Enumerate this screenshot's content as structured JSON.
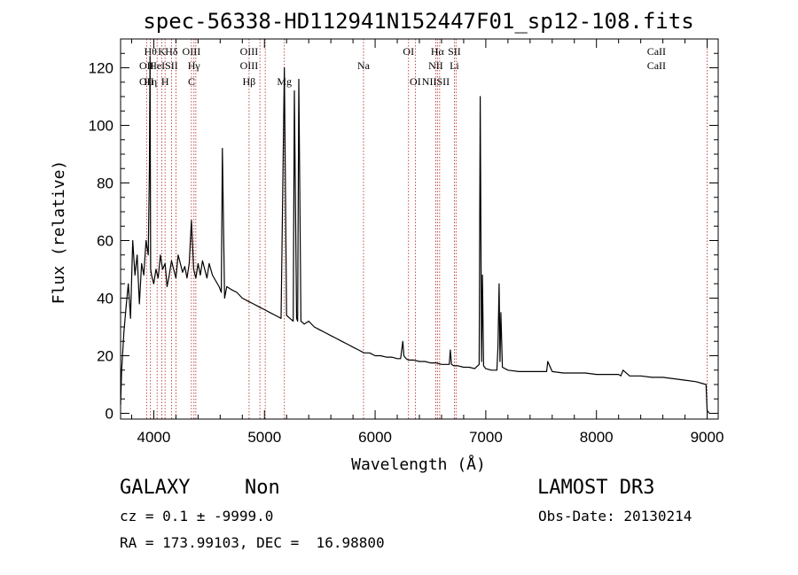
{
  "chart_data": {
    "type": "line",
    "title": "spec-56338-HD112941N152447F01_sp12-108.fits",
    "xlabel": "Wavelength (Å)",
    "ylabel": "Flux (relative)",
    "xlim": [
      3700,
      9100
    ],
    "ylim": [
      -2,
      130
    ],
    "xticks": [
      4000,
      5000,
      6000,
      7000,
      8000,
      9000
    ],
    "yticks": [
      0,
      20,
      40,
      60,
      80,
      100,
      120
    ],
    "grid": false,
    "line_color": "#000000",
    "marker_color": "#b22222",
    "series": [
      {
        "x": [
          3700,
          3710,
          3730,
          3750,
          3770,
          3790,
          3810,
          3830,
          3850,
          3870,
          3890,
          3910,
          3930,
          3950,
          3960,
          3966,
          3972,
          3980,
          4000,
          4020,
          4040,
          4060,
          4080,
          4102,
          4120,
          4140,
          4160,
          4180,
          4200,
          4220,
          4240,
          4260,
          4280,
          4300,
          4320,
          4340,
          4360,
          4380,
          4400,
          4420,
          4440,
          4460,
          4480,
          4500,
          4530,
          4560,
          4590,
          4610,
          4620,
          4640,
          4660,
          4700,
          4750,
          4800,
          4850,
          4900,
          4950,
          5000,
          5050,
          5100,
          5150,
          5180,
          5200,
          5230,
          5260,
          5270,
          5290,
          5300,
          5310,
          5330,
          5360,
          5400,
          5450,
          5500,
          5550,
          5600,
          5650,
          5700,
          5750,
          5800,
          5850,
          5900,
          5950,
          6000,
          6050,
          6100,
          6150,
          6200,
          6230,
          6250,
          6260,
          6280,
          6300,
          6350,
          6400,
          6450,
          6500,
          6550,
          6600,
          6650,
          6670,
          6680,
          6690,
          6710,
          6750,
          6800,
          6850,
          6900,
          6940,
          6950,
          6962,
          6970,
          6980,
          6990,
          7000,
          7050,
          7100,
          7110,
          7120,
          7128,
          7136,
          7150,
          7200,
          7300,
          7400,
          7500,
          7540,
          7550,
          7560,
          7600,
          7700,
          7800,
          7900,
          8000,
          8100,
          8200,
          8220,
          8240,
          8300,
          8400,
          8500,
          8600,
          8700,
          8800,
          8900,
          8990,
          9000,
          9020
        ],
        "y": [
          3,
          15,
          28,
          37,
          45,
          33,
          60,
          48,
          55,
          38,
          52,
          48,
          60,
          55,
          85,
          124,
          50,
          48,
          45,
          50,
          47,
          55,
          50,
          52,
          44,
          48,
          53,
          50,
          47,
          55,
          52,
          49,
          51,
          47,
          52,
          67,
          50,
          47,
          52,
          48,
          53,
          50,
          47,
          52,
          48,
          46,
          44,
          42,
          92,
          40,
          44,
          43,
          42,
          40,
          39,
          38,
          37,
          36,
          35,
          34,
          33,
          120,
          34,
          33,
          32,
          112,
          33,
          32,
          116,
          32,
          31,
          32,
          30,
          29,
          28,
          27,
          26,
          25,
          24,
          23,
          22,
          21,
          21,
          20,
          20,
          19.5,
          19.5,
          19,
          19,
          25,
          20,
          19,
          18.5,
          18.5,
          18,
          18,
          17.5,
          17.5,
          17,
          17,
          17,
          22,
          17,
          16.5,
          16.5,
          16,
          16,
          15.5,
          17,
          110,
          18,
          48,
          16.5,
          16,
          15.5,
          15,
          15,
          23,
          45,
          18,
          35,
          16,
          15,
          14.5,
          14.5,
          14.5,
          14.5,
          14.5,
          18,
          14.5,
          14,
          14,
          14,
          13.5,
          13.5,
          13.5,
          13,
          15,
          13,
          13,
          12.5,
          12.5,
          12,
          11.5,
          11,
          10,
          1,
          0
        ]
      }
    ],
    "emission_lines": [
      {
        "x": 3935,
        "label": "OII",
        "row": 1
      },
      {
        "x": 3935,
        "label": "OII",
        "row": 3
      },
      {
        "x": 3970,
        "label": "Hθ",
        "row": 0
      },
      {
        "x": 3970,
        "label": "Hη",
        "row": 2
      },
      {
        "x": 4030,
        "label": "HeI",
        "row": 1
      },
      {
        "x": 4072,
        "label": "K",
        "row": 0
      },
      {
        "x": 4102,
        "label": "H",
        "row": 2
      },
      {
        "x": 4160,
        "label": "Hδ",
        "row": 0
      },
      {
        "x": 4160,
        "label": "SII",
        "row": 1
      },
      {
        "x": 4340,
        "label": "OIII",
        "row": 0
      },
      {
        "x": 4363,
        "label": "Hγ",
        "row": 1
      },
      {
        "x": 4341,
        "label": "C",
        "row": 2
      },
      {
        "x": 4861,
        "label": "OIII",
        "row": 0
      },
      {
        "x": 4861,
        "label": "OIII",
        "row": 1
      },
      {
        "x": 4861,
        "label": "Hβ",
        "row": 2
      },
      {
        "x": 5180,
        "label": "Mg",
        "row": 2
      },
      {
        "x": 5895,
        "label": "Na",
        "row": 1
      },
      {
        "x": 6302,
        "label": "OI",
        "row": 0
      },
      {
        "x": 6363,
        "label": "OI",
        "row": 2
      },
      {
        "x": 6563,
        "label": "Hα",
        "row": 0
      },
      {
        "x": 6548,
        "label": "NII",
        "row": 1
      },
      {
        "x": 6548,
        "label": "NIISII",
        "row": 2
      },
      {
        "x": 6716,
        "label": "SII",
        "row": 0
      },
      {
        "x": 6716,
        "label": "Li",
        "row": 1
      },
      {
        "x": 8542,
        "label": "CaII",
        "row": 0
      },
      {
        "x": 8542,
        "label": "CaII",
        "row": 1
      }
    ],
    "marker_lines_x": [
      3935,
      3970,
      4030,
      4072,
      4102,
      4160,
      4200,
      4340,
      4363,
      4380,
      4861,
      4959,
      5007,
      5180,
      5895,
      6302,
      6363,
      6548,
      6563,
      6583,
      6716,
      6731,
      9000
    ]
  },
  "info": {
    "object_type": "GALAXY",
    "subtype": "Non",
    "survey": "LAMOST DR3",
    "cz": "cz = 0.1 ± -9999.0",
    "obs_date": "Obs-Date: 20130214",
    "coords": "RA = 173.99103, DEC =  16.98800"
  }
}
